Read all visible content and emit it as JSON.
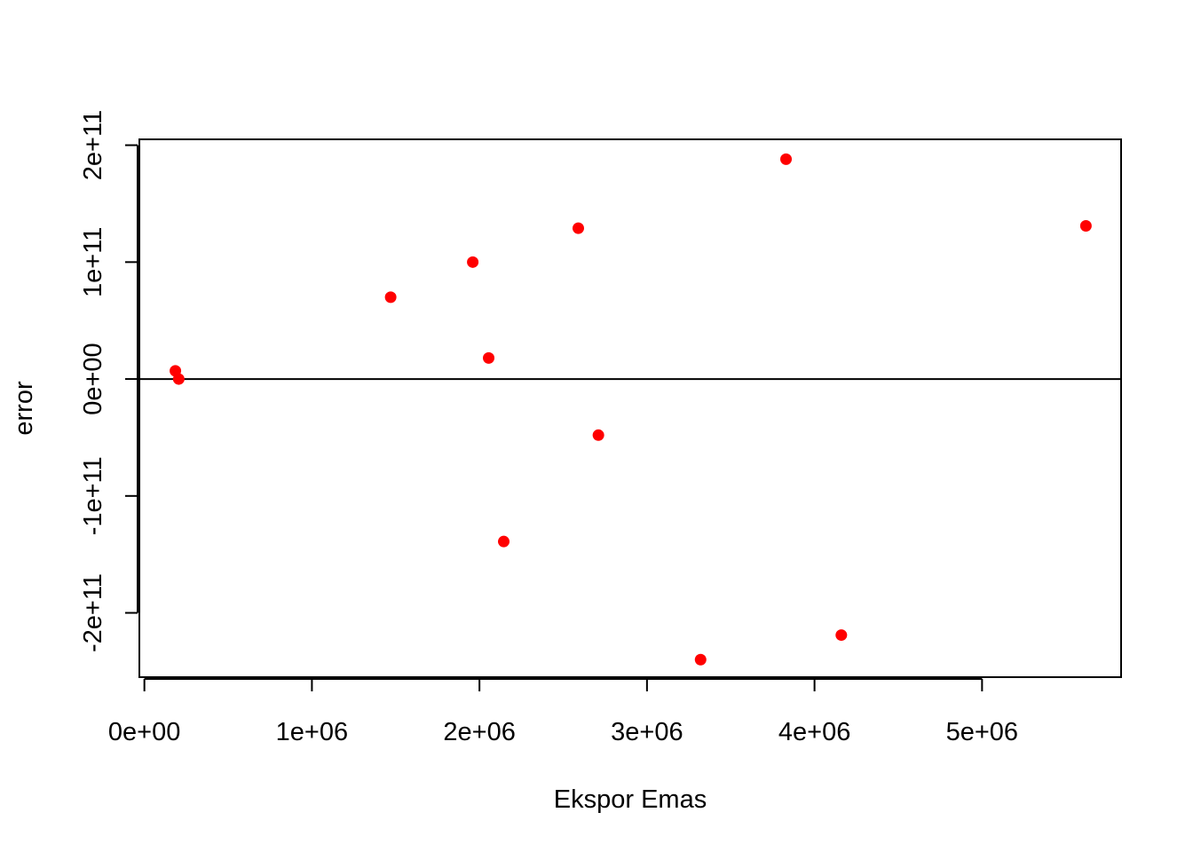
{
  "chart_data": {
    "type": "scatter",
    "title": "",
    "xlabel": "Ekspor Emas",
    "ylabel": "error",
    "xlim": [
      -30000,
      5830000
    ],
    "ylim": [
      -255000000000,
      205000000000
    ],
    "x_ticks": [
      0,
      1000000,
      2000000,
      3000000,
      4000000,
      5000000
    ],
    "x_tick_labels": [
      "0e+00",
      "1e+06",
      "2e+06",
      "3e+06",
      "4e+06",
      "5e+06"
    ],
    "y_ticks": [
      -200000000000,
      -100000000000,
      0,
      100000000000,
      200000000000
    ],
    "y_tick_labels": [
      "-2e+11",
      "-1e+11",
      "0e+00",
      "1e+11",
      "2e+11"
    ],
    "reference_line_y": 0,
    "grid": false,
    "point_color": "#ff0000",
    "points": [
      {
        "x": 185000,
        "y": 7000000000
      },
      {
        "x": 205000,
        "y": 0
      },
      {
        "x": 1470000,
        "y": 70000000000
      },
      {
        "x": 1960000,
        "y": 100000000000
      },
      {
        "x": 2055000,
        "y": 18000000000
      },
      {
        "x": 2145000,
        "y": -139000000000
      },
      {
        "x": 2590000,
        "y": 129000000000
      },
      {
        "x": 2710000,
        "y": -48000000000
      },
      {
        "x": 3320000,
        "y": -240000000000
      },
      {
        "x": 3830000,
        "y": 188000000000
      },
      {
        "x": 4160000,
        "y": -219000000000
      },
      {
        "x": 5620000,
        "y": 131000000000
      }
    ]
  }
}
